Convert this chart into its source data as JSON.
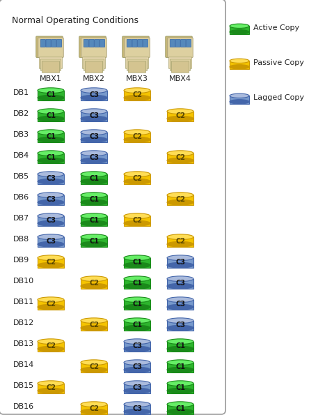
{
  "title": "Normal Operating Conditions",
  "bg_color": "#ffffff",
  "servers": [
    "MBX1",
    "MBX2",
    "MBX3",
    "MBX4"
  ],
  "databases": [
    "DB1",
    "DB2",
    "DB3",
    "DB4",
    "DB5",
    "DB6",
    "DB7",
    "DB8",
    "DB9",
    "DB10",
    "DB11",
    "DB12",
    "DB13",
    "DB14",
    "DB15",
    "DB16"
  ],
  "legend_labels": [
    "Active Copy",
    "Passive Copy",
    "Lagged Copy"
  ],
  "legend_types": [
    "active",
    "passive",
    "lagged"
  ],
  "grid": [
    [
      {
        "label": "C1",
        "type": "active"
      },
      {
        "label": "C3",
        "type": "lagged"
      },
      {
        "label": "C2",
        "type": "passive"
      },
      null
    ],
    [
      {
        "label": "C1",
        "type": "active"
      },
      {
        "label": "C3",
        "type": "lagged"
      },
      null,
      {
        "label": "C2",
        "type": "passive"
      }
    ],
    [
      {
        "label": "C1",
        "type": "active"
      },
      {
        "label": "C3",
        "type": "lagged"
      },
      {
        "label": "C2",
        "type": "passive"
      },
      null
    ],
    [
      {
        "label": "C1",
        "type": "active"
      },
      {
        "label": "C3",
        "type": "lagged"
      },
      null,
      {
        "label": "C2",
        "type": "passive"
      }
    ],
    [
      {
        "label": "C3",
        "type": "lagged"
      },
      {
        "label": "C1",
        "type": "active"
      },
      {
        "label": "C2",
        "type": "passive"
      },
      null
    ],
    [
      {
        "label": "C3",
        "type": "lagged"
      },
      {
        "label": "C1",
        "type": "active"
      },
      null,
      {
        "label": "C2",
        "type": "passive"
      }
    ],
    [
      {
        "label": "C3",
        "type": "lagged"
      },
      {
        "label": "C1",
        "type": "active"
      },
      {
        "label": "C2",
        "type": "passive"
      },
      null
    ],
    [
      {
        "label": "C3",
        "type": "lagged"
      },
      {
        "label": "C1",
        "type": "active"
      },
      null,
      {
        "label": "C2",
        "type": "passive"
      }
    ],
    [
      {
        "label": "C2",
        "type": "passive"
      },
      null,
      {
        "label": "C1",
        "type": "active"
      },
      {
        "label": "C3",
        "type": "lagged"
      }
    ],
    [
      null,
      {
        "label": "C2",
        "type": "passive"
      },
      {
        "label": "C1",
        "type": "active"
      },
      {
        "label": "C3",
        "type": "lagged"
      }
    ],
    [
      {
        "label": "C2",
        "type": "passive"
      },
      null,
      {
        "label": "C1",
        "type": "active"
      },
      {
        "label": "C3",
        "type": "lagged"
      }
    ],
    [
      null,
      {
        "label": "C2",
        "type": "passive"
      },
      {
        "label": "C1",
        "type": "active"
      },
      {
        "label": "C3",
        "type": "lagged"
      }
    ],
    [
      {
        "label": "C2",
        "type": "passive"
      },
      null,
      {
        "label": "C3",
        "type": "lagged"
      },
      {
        "label": "C1",
        "type": "active"
      }
    ],
    [
      null,
      {
        "label": "C2",
        "type": "passive"
      },
      {
        "label": "C3",
        "type": "lagged"
      },
      {
        "label": "C1",
        "type": "active"
      }
    ],
    [
      {
        "label": "C2",
        "type": "passive"
      },
      null,
      {
        "label": "C3",
        "type": "lagged"
      },
      {
        "label": "C1",
        "type": "active"
      }
    ],
    [
      null,
      {
        "label": "C2",
        "type": "passive"
      },
      {
        "label": "C3",
        "type": "lagged"
      },
      {
        "label": "C1",
        "type": "active"
      }
    ]
  ],
  "type_colors": {
    "active": "#2db52d",
    "passive": "#f5c400",
    "lagged": "#7799cc"
  },
  "type_edge_colors": {
    "active": "#1a8a1a",
    "passive": "#cc9900",
    "lagged": "#4466aa"
  },
  "type_top_colors": {
    "active": "#66ee66",
    "passive": "#ffdd55",
    "lagged": "#aabbdd"
  }
}
